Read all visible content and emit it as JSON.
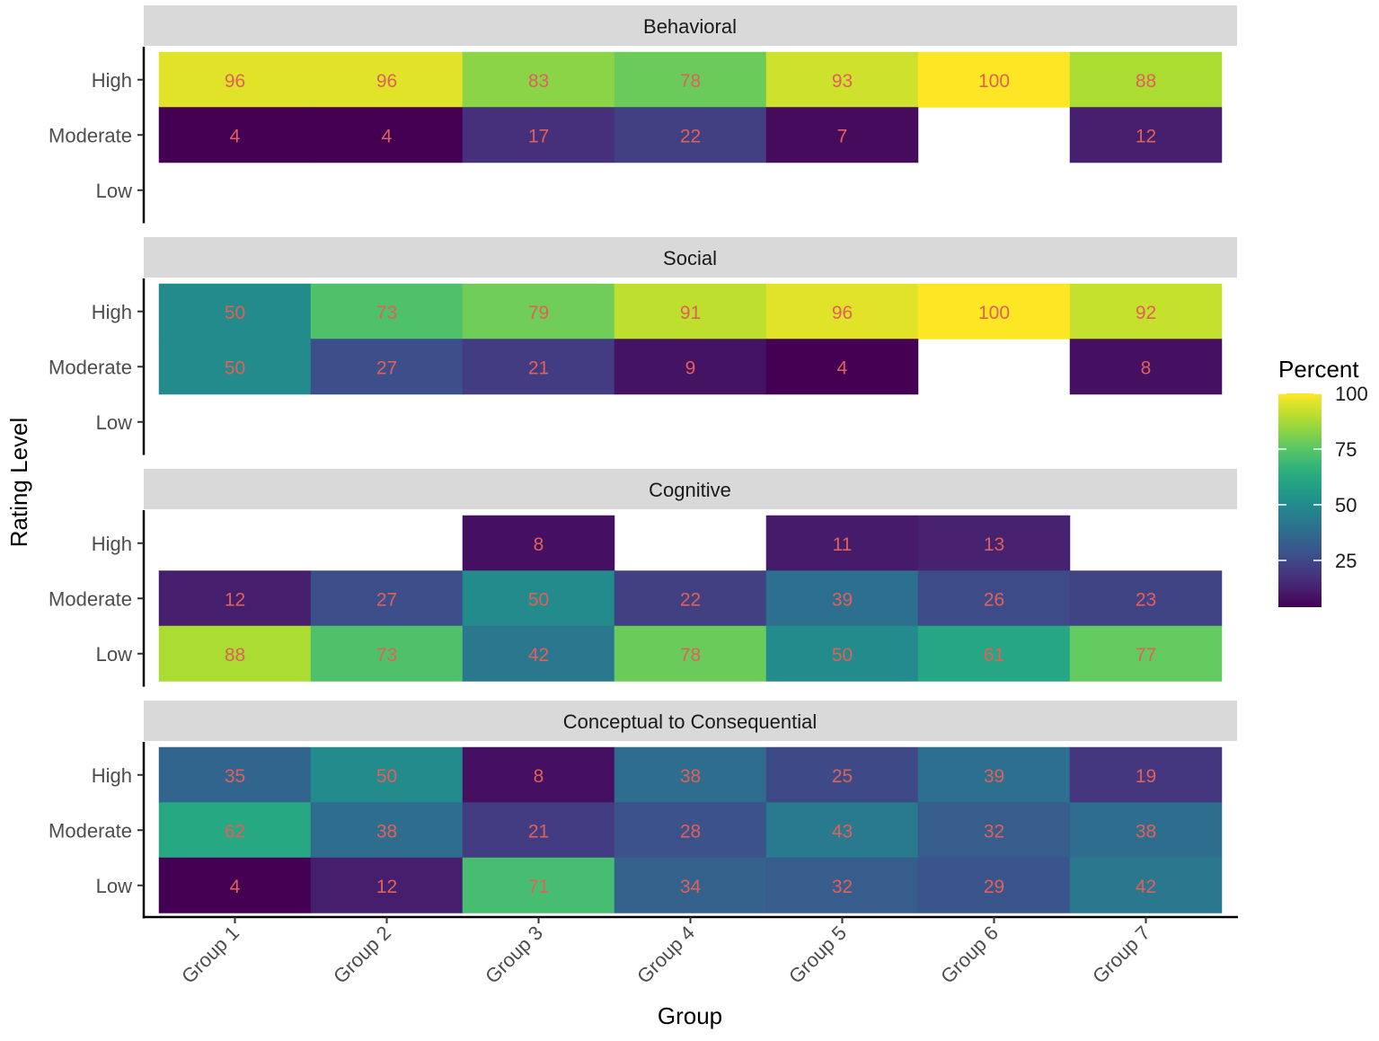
{
  "chart_data": {
    "type": "heatmap",
    "xlabel": "Group",
    "ylabel": "Rating Level",
    "categories": [
      "Group 1",
      "Group 2",
      "Group 3",
      "Group 4",
      "Group 5",
      "Group 6",
      "Group 7"
    ],
    "rows": [
      "High",
      "Moderate",
      "Low"
    ],
    "legend": {
      "title": "Percent",
      "ticks": [
        "25",
        "50",
        "75",
        "100"
      ],
      "range": [
        4,
        100
      ],
      "palette": "viridis",
      "placement": "right"
    },
    "cell_text_color": "#e0605a",
    "strip_color": "#d9d9d9",
    "panels": [
      {
        "title": "Behavioral",
        "values": {
          "High": [
            96,
            96,
            83,
            78,
            93,
            100,
            88
          ],
          "Moderate": [
            4,
            4,
            17,
            22,
            7,
            null,
            12
          ],
          "Low": [
            null,
            null,
            null,
            null,
            null,
            null,
            null
          ]
        }
      },
      {
        "title": "Social",
        "values": {
          "High": [
            50,
            73,
            79,
            91,
            96,
            100,
            92
          ],
          "Moderate": [
            50,
            27,
            21,
            9,
            4,
            null,
            8
          ],
          "Low": [
            null,
            null,
            null,
            null,
            null,
            null,
            null
          ]
        }
      },
      {
        "title": "Cognitive",
        "values": {
          "High": [
            null,
            null,
            8,
            null,
            11,
            13,
            null
          ],
          "Moderate": [
            12,
            27,
            50,
            22,
            39,
            26,
            23
          ],
          "Low": [
            88,
            73,
            42,
            78,
            50,
            61,
            77
          ]
        }
      },
      {
        "title": "Conceptual to Consequential",
        "values": {
          "High": [
            35,
            50,
            8,
            38,
            25,
            39,
            19
          ],
          "Moderate": [
            62,
            38,
            21,
            28,
            43,
            32,
            38
          ],
          "Low": [
            4,
            12,
            71,
            34,
            32,
            29,
            42
          ]
        }
      }
    ]
  }
}
